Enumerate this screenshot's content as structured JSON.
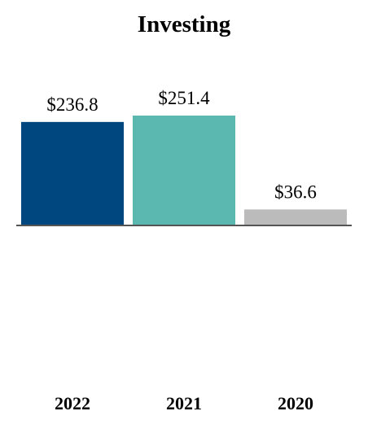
{
  "chart_data": {
    "type": "bar",
    "title": "Investing",
    "xlabel": "",
    "ylabel": "",
    "categories": [
      "2022",
      "2021",
      "2020"
    ],
    "values": [
      236.8,
      251.4,
      36.6
    ],
    "data_labels": [
      "$236.8",
      "$251.4",
      "$36.6"
    ],
    "colors": [
      "#00467F",
      "#5BB8B0",
      "#BBBBBB"
    ],
    "ylim": [
      0,
      251.4
    ],
    "grid": false,
    "legend": "none"
  }
}
